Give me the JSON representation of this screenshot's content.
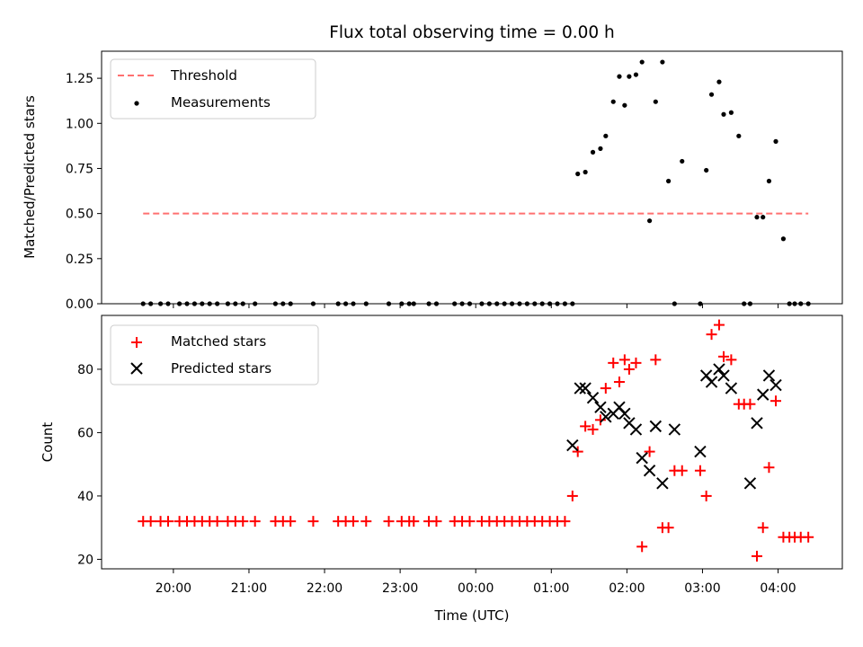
{
  "chart_data": [
    {
      "type": "scatter",
      "title": "Flux total observing time = 0.00 h",
      "xlabel": "",
      "ylabel": "Matched/Predicted stars",
      "ylim": [
        0,
        1.4
      ],
      "yticks": [
        0,
        0.25,
        0.5,
        0.75,
        1.0,
        1.25
      ],
      "yticklabels": [
        "0.00",
        "0.25",
        "0.50",
        "0.75",
        "1.00",
        "1.25"
      ],
      "legend_position": "top-left",
      "threshold": {
        "name": "Threshold",
        "value": 0.5,
        "x_range": [
          19.6,
          28.4
        ],
        "color": "#ff7070"
      },
      "series": [
        {
          "name": "Measurements",
          "marker": "dot",
          "color": "#000000",
          "x": [
            19.6,
            19.7,
            19.83,
            19.93,
            20.08,
            20.18,
            20.28,
            20.38,
            20.48,
            20.58,
            20.72,
            20.82,
            20.92,
            21.08,
            21.35,
            21.45,
            21.55,
            21.85,
            22.18,
            22.28,
            22.38,
            22.55,
            22.85,
            23.02,
            23.12,
            23.18,
            23.38,
            23.48,
            23.72,
            23.82,
            23.92,
            24.08,
            24.18,
            24.28,
            24.38,
            24.48,
            24.58,
            24.68,
            24.78,
            24.88,
            24.98,
            25.08,
            25.18,
            25.28,
            25.35,
            25.45,
            25.55,
            25.65,
            25.72,
            25.82,
            25.9,
            25.97,
            26.03,
            26.12,
            26.2,
            26.3,
            26.38,
            26.47,
            26.55,
            26.63,
            26.73,
            26.97,
            27.05,
            27.12,
            27.22,
            27.28,
            27.38,
            27.48,
            27.55,
            27.63,
            27.72,
            27.8,
            27.88,
            27.97,
            28.07,
            28.15,
            28.22,
            28.3,
            28.4
          ],
          "y": [
            0,
            0,
            0,
            0,
            0,
            0,
            0,
            0,
            0,
            0,
            0,
            0,
            0,
            0,
            0,
            0,
            0,
            0,
            0,
            0,
            0,
            0,
            0,
            0,
            0,
            0,
            0,
            0,
            0,
            0,
            0,
            0,
            0,
            0,
            0,
            0,
            0,
            0,
            0,
            0,
            0,
            0,
            0,
            0,
            0.72,
            0.73,
            0.84,
            0.86,
            0.93,
            1.12,
            1.26,
            1.1,
            1.26,
            1.27,
            1.34,
            0.46,
            1.12,
            1.34,
            0.68,
            0,
            0.79,
            0,
            0.74,
            1.16,
            1.23,
            1.05,
            1.06,
            0.93,
            0,
            0,
            0.48,
            0.48,
            0.68,
            0.9,
            0.36,
            0,
            0,
            0,
            0
          ]
        }
      ]
    },
    {
      "type": "scatter",
      "title": "",
      "xlabel": "Time (UTC)",
      "ylabel": "Count",
      "xlim": [
        19.05,
        28.85
      ],
      "ylim": [
        17,
        97
      ],
      "xticks": [
        20,
        21,
        22,
        23,
        24,
        25,
        26,
        27,
        28
      ],
      "xticklabels": [
        "20:00",
        "21:00",
        "22:00",
        "23:00",
        "00:00",
        "01:00",
        "02:00",
        "03:00",
        "04:00"
      ],
      "yticks": [
        20,
        40,
        60,
        80
      ],
      "yticklabels": [
        "20",
        "40",
        "60",
        "80"
      ],
      "legend_position": "top-left",
      "series": [
        {
          "name": "Matched stars",
          "marker": "plus",
          "color": "#ff0000",
          "x": [
            19.6,
            19.7,
            19.83,
            19.93,
            20.08,
            20.18,
            20.28,
            20.38,
            20.48,
            20.58,
            20.72,
            20.82,
            20.92,
            21.08,
            21.35,
            21.45,
            21.55,
            21.85,
            22.18,
            22.28,
            22.38,
            22.55,
            22.85,
            23.02,
            23.12,
            23.18,
            23.38,
            23.48,
            23.72,
            23.82,
            23.92,
            24.08,
            24.18,
            24.28,
            24.38,
            24.48,
            24.58,
            24.68,
            24.78,
            24.88,
            24.98,
            25.08,
            25.18,
            25.28,
            25.35,
            25.45,
            25.55,
            25.65,
            25.72,
            25.82,
            25.9,
            25.97,
            26.03,
            26.12,
            26.2,
            26.3,
            26.38,
            26.47,
            26.55,
            26.63,
            26.73,
            26.97,
            27.05,
            27.12,
            27.22,
            27.28,
            27.38,
            27.48,
            27.55,
            27.63,
            27.72,
            27.8,
            27.88,
            27.97,
            28.07,
            28.15,
            28.22,
            28.3,
            28.4
          ],
          "y": [
            32,
            32,
            32,
            32,
            32,
            32,
            32,
            32,
            32,
            32,
            32,
            32,
            32,
            32,
            32,
            32,
            32,
            32,
            32,
            32,
            32,
            32,
            32,
            32,
            32,
            32,
            32,
            32,
            32,
            32,
            32,
            32,
            32,
            32,
            32,
            32,
            32,
            32,
            32,
            32,
            32,
            32,
            32,
            40,
            54,
            62,
            61,
            64,
            74,
            82,
            76,
            83,
            80,
            82,
            24,
            54,
            83,
            30,
            30,
            48,
            48,
            48,
            40,
            91,
            94,
            84,
            83,
            69,
            69,
            69,
            21,
            30,
            49,
            70,
            27,
            27,
            27,
            27,
            27
          ]
        },
        {
          "name": "Predicted stars",
          "marker": "x",
          "color": "#000000",
          "x": [
            25.28,
            25.38,
            25.45,
            25.55,
            25.65,
            25.72,
            25.82,
            25.9,
            25.97,
            26.03,
            26.12,
            26.2,
            26.3,
            26.38,
            26.47,
            26.63,
            26.97,
            27.05,
            27.12,
            27.22,
            27.28,
            27.38,
            27.63,
            27.72,
            27.8,
            27.88,
            27.97
          ],
          "y": [
            56,
            74,
            74,
            71,
            68,
            65,
            66,
            68,
            66,
            63,
            61,
            52,
            48,
            62,
            44,
            61,
            54,
            78,
            76,
            80,
            78,
            74,
            44,
            63,
            72,
            78,
            75
          ]
        }
      ]
    }
  ]
}
